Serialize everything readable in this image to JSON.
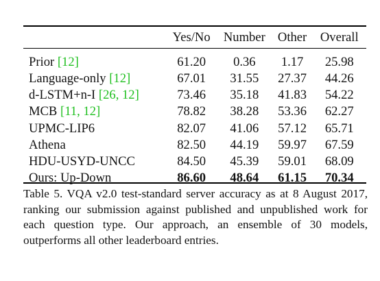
{
  "table": {
    "headers": [
      "",
      "Yes/No",
      "Number",
      "Other",
      "Overall"
    ],
    "rows": [
      {
        "method": "Prior",
        "refs": "[12]",
        "yes_no": "61.20",
        "number": "0.36",
        "other": "1.17",
        "overall": "25.98"
      },
      {
        "method": "Language-only",
        "refs": "[12]",
        "yes_no": "67.01",
        "number": "31.55",
        "other": "27.37",
        "overall": "44.26"
      },
      {
        "method": "d-LSTM+n-I",
        "refs": "[26, 12]",
        "yes_no": "73.46",
        "number": "35.18",
        "other": "41.83",
        "overall": "54.22"
      },
      {
        "method": "MCB",
        "refs": "[11, 12]",
        "yes_no": "78.82",
        "number": "38.28",
        "other": "53.36",
        "overall": "62.27"
      },
      {
        "method": "UPMC-LIP6",
        "refs": "",
        "yes_no": "82.07",
        "number": "41.06",
        "other": "57.12",
        "overall": "65.71"
      },
      {
        "method": "Athena",
        "refs": "",
        "yes_no": "82.50",
        "number": "44.19",
        "other": "59.97",
        "overall": "67.59"
      },
      {
        "method": "HDU-USYD-UNCC",
        "refs": "",
        "yes_no": "84.50",
        "number": "45.39",
        "other": "59.01",
        "overall": "68.09"
      },
      {
        "method": "Ours: Up-Down",
        "refs": "",
        "yes_no": "86.60",
        "number": "48.64",
        "other": "61.15",
        "overall": "70.34"
      }
    ]
  },
  "caption": "Table 5. VQA v2.0 test-standard server accuracy as at 8 August 2017, ranking our submission against published and unpublished work for each question type. Our approach, an ensemble of 30 models, outperforms all other leaderboard entries.",
  "colors": {
    "citation": "#1fbf1f",
    "text": "#111111",
    "rule": "#000000"
  }
}
